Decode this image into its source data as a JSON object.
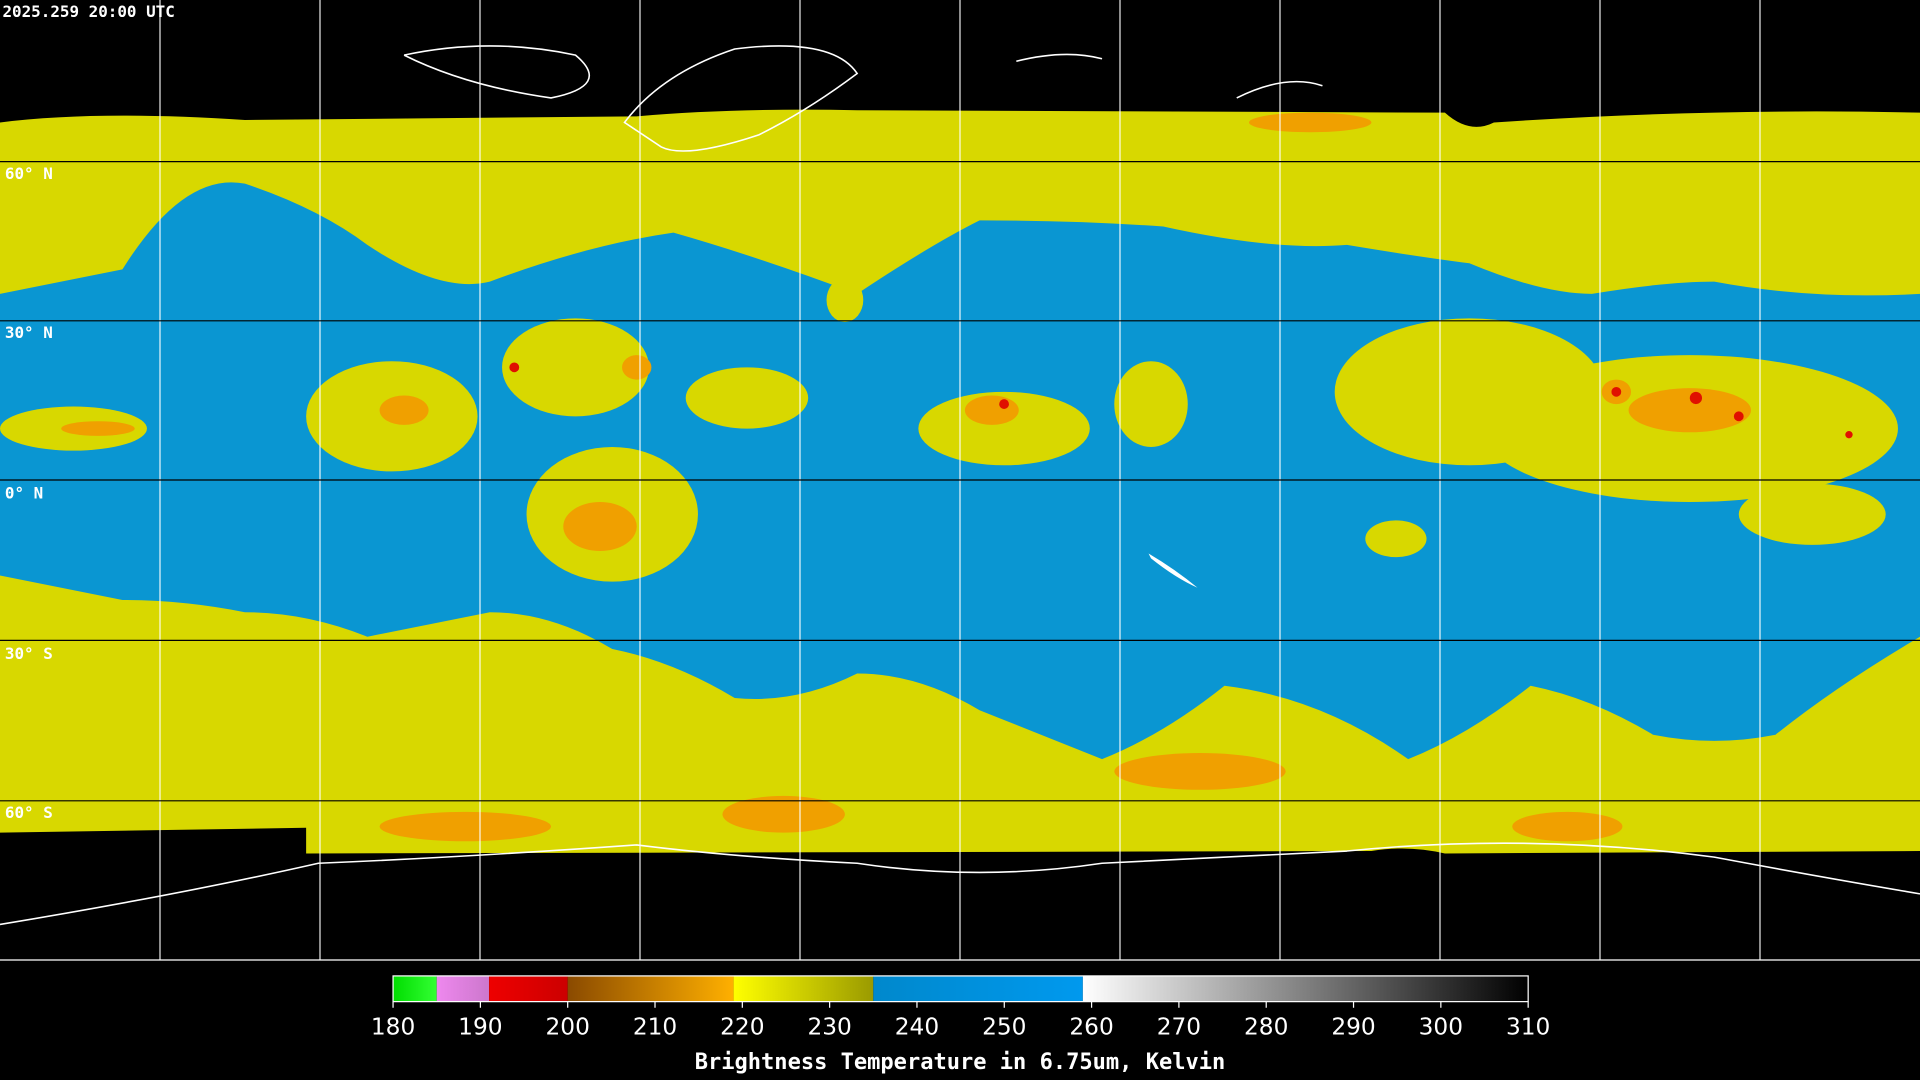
{
  "header": {
    "title": "2025.259 20:00 UTC"
  },
  "map": {
    "latitude_labels": [
      "60° N",
      "30° N",
      "0° N",
      "30° S",
      "60° S"
    ]
  },
  "colorbar": {
    "label": "Brightness Temperature in 6.75um, Kelvin",
    "range": [
      180,
      310
    ],
    "ticks": [
      180,
      190,
      200,
      210,
      220,
      230,
      240,
      250,
      260,
      270,
      280,
      290,
      300,
      310
    ],
    "segments": [
      {
        "from": 180,
        "to": 185,
        "colors": [
          "#00dd00",
          "#33ff33"
        ]
      },
      {
        "from": 185,
        "to": 191,
        "colors": [
          "#ee88ee",
          "#cc77cc"
        ]
      },
      {
        "from": 191,
        "to": 200,
        "colors": [
          "#ee0000",
          "#cc0000"
        ]
      },
      {
        "from": 200,
        "to": 219,
        "colors": [
          "#8a4a00",
          "#ffb000"
        ]
      },
      {
        "from": 219,
        "to": 235,
        "colors": [
          "#ffff00",
          "#9a9a00"
        ]
      },
      {
        "from": 235,
        "to": 259,
        "colors": [
          "#0088cc",
          "#0099ee"
        ]
      },
      {
        "from": 259,
        "to": 310,
        "colors": [
          "#ffffff",
          "#000000"
        ]
      }
    ]
  }
}
